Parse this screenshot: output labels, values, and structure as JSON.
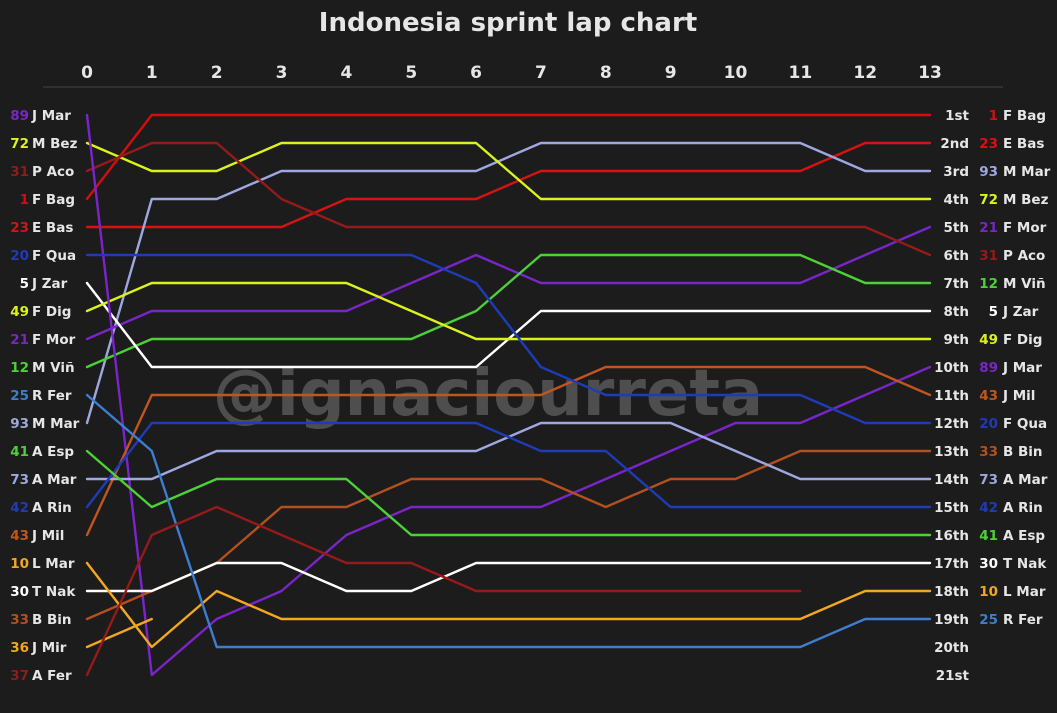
{
  "colors": {
    "background": "#1c1c1c",
    "text": "#e6e6e6",
    "axis": "#444444"
  },
  "chart_data": {
    "type": "line",
    "title": "Indonesia sprint lap chart",
    "watermark": "@ignaciourreta",
    "laps": [
      "0",
      "1",
      "2",
      "3",
      "4",
      "5",
      "6",
      "7",
      "8",
      "9",
      "10",
      "11",
      "12",
      "13"
    ],
    "positions": [
      "1st",
      "2nd",
      "3rd",
      "4th",
      "5th",
      "6th",
      "7th",
      "8th",
      "9th",
      "10th",
      "11th",
      "12th",
      "13th",
      "14th",
      "15th",
      "16th",
      "17th",
      "18th",
      "19th",
      "20th",
      "21st"
    ],
    "start_order": [
      "89",
      "72",
      "31",
      "1",
      "23",
      "20",
      "5",
      "49",
      "21",
      "12",
      "25",
      "93",
      "41",
      "73",
      "42",
      "43",
      "10",
      "30",
      "33",
      "36",
      "37"
    ],
    "finish_order": [
      "1",
      "23",
      "93",
      "72",
      "21",
      "31",
      "12",
      "5",
      "49",
      "89",
      "43",
      "20",
      "33",
      "73",
      "42",
      "41",
      "30",
      "10",
      "25"
    ],
    "drivers": [
      {
        "number": "1",
        "name": "F Bag",
        "color": "#d40d0d",
        "positions": [
          4,
          1,
          1,
          1,
          1,
          1,
          1,
          1,
          1,
          1,
          1,
          1,
          1,
          1
        ]
      },
      {
        "number": "23",
        "name": "E Bas",
        "color": "#d71212",
        "positions": [
          5,
          5,
          5,
          5,
          4,
          4,
          4,
          3,
          3,
          3,
          3,
          3,
          2,
          2
        ]
      },
      {
        "number": "93",
        "name": "M Mar",
        "color": "#9ea8e0",
        "positions": [
          12,
          4,
          4,
          3,
          3,
          3,
          3,
          2,
          2,
          2,
          2,
          2,
          3,
          3
        ]
      },
      {
        "number": "72",
        "name": "M Bez",
        "color": "#dcf21e",
        "positions": [
          2,
          3,
          3,
          2,
          2,
          2,
          2,
          4,
          4,
          4,
          4,
          4,
          4,
          4
        ]
      },
      {
        "number": "21",
        "name": "F Mor",
        "color": "#7a25c9",
        "positions": [
          9,
          8,
          8,
          8,
          8,
          7,
          6,
          7,
          7,
          7,
          7,
          7,
          6,
          5
        ]
      },
      {
        "number": "31",
        "name": "P Aco",
        "color": "#951a1a",
        "positions": [
          3,
          2,
          2,
          4,
          5,
          5,
          5,
          5,
          5,
          5,
          5,
          5,
          5,
          6
        ]
      },
      {
        "number": "12",
        "name": "M Viñ",
        "color": "#4cd137",
        "positions": [
          10,
          9,
          9,
          9,
          9,
          9,
          8,
          6,
          6,
          6,
          6,
          6,
          7,
          7
        ]
      },
      {
        "number": "5",
        "name": "J Zar",
        "color": "#ffffff",
        "positions": [
          7,
          10,
          10,
          10,
          10,
          10,
          10,
          8,
          8,
          8,
          8,
          8,
          8,
          8
        ]
      },
      {
        "number": "49",
        "name": "F Dig",
        "color": "#dcf21e",
        "positions": [
          8,
          7,
          7,
          7,
          7,
          8,
          9,
          9,
          9,
          9,
          9,
          9,
          9,
          9
        ]
      },
      {
        "number": "89",
        "name": "J Mar",
        "color": "#7a25c9",
        "positions": [
          1,
          21,
          19,
          18,
          16,
          15,
          15,
          15,
          14,
          13,
          12,
          12,
          11,
          10
        ]
      },
      {
        "number": "43",
        "name": "J Mil",
        "color": "#c0561e",
        "positions": [
          16,
          11,
          11,
          11,
          11,
          11,
          11,
          11,
          10,
          10,
          10,
          10,
          10,
          11
        ]
      },
      {
        "number": "20",
        "name": "F Qua",
        "color": "#1e3bb8",
        "positions": [
          6,
          6,
          6,
          6,
          6,
          6,
          7,
          10,
          11,
          11,
          11,
          11,
          12,
          12
        ]
      },
      {
        "number": "33",
        "name": "B Bin",
        "color": "#b4501e",
        "positions": [
          19,
          18,
          17,
          15,
          15,
          14,
          14,
          14,
          15,
          14,
          14,
          13,
          13,
          13
        ]
      },
      {
        "number": "73",
        "name": "A Mar",
        "color": "#9ea8e0",
        "positions": [
          14,
          14,
          13,
          13,
          13,
          13,
          13,
          12,
          12,
          12,
          13,
          14,
          14,
          14
        ]
      },
      {
        "number": "42",
        "name": "A Rin",
        "color": "#1e3bb8",
        "positions": [
          15,
          12,
          12,
          12,
          12,
          12,
          12,
          13,
          13,
          15,
          15,
          15,
          15,
          15
        ]
      },
      {
        "number": "41",
        "name": "A Esp",
        "color": "#4cd137",
        "positions": [
          13,
          15,
          14,
          14,
          14,
          16,
          16,
          16,
          16,
          16,
          16,
          16,
          16,
          16
        ]
      },
      {
        "number": "30",
        "name": "T Nak",
        "color": "#ffffff",
        "positions": [
          18,
          18,
          17,
          17,
          18,
          18,
          17,
          17,
          17,
          17,
          17,
          17,
          17,
          17
        ]
      },
      {
        "number": "10",
        "name": "L Mar",
        "color": "#f2a81d",
        "positions": [
          17,
          20,
          18,
          19,
          19,
          19,
          19,
          19,
          19,
          19,
          19,
          19,
          18,
          18
        ]
      },
      {
        "number": "25",
        "name": "R Fer",
        "color": "#3d7ed1",
        "positions": [
          11,
          13,
          20,
          20,
          20,
          20,
          20,
          20,
          20,
          20,
          20,
          20,
          19,
          19
        ]
      },
      {
        "number": "36",
        "name": "J Mir",
        "color": "#f2a81d",
        "positions": [
          20,
          19
        ]
      },
      {
        "number": "37",
        "name": "A Fer",
        "color": "#951a1a",
        "positions": [
          21,
          16,
          15,
          16,
          17,
          17,
          18,
          18,
          18,
          18,
          18,
          18
        ]
      }
    ]
  }
}
